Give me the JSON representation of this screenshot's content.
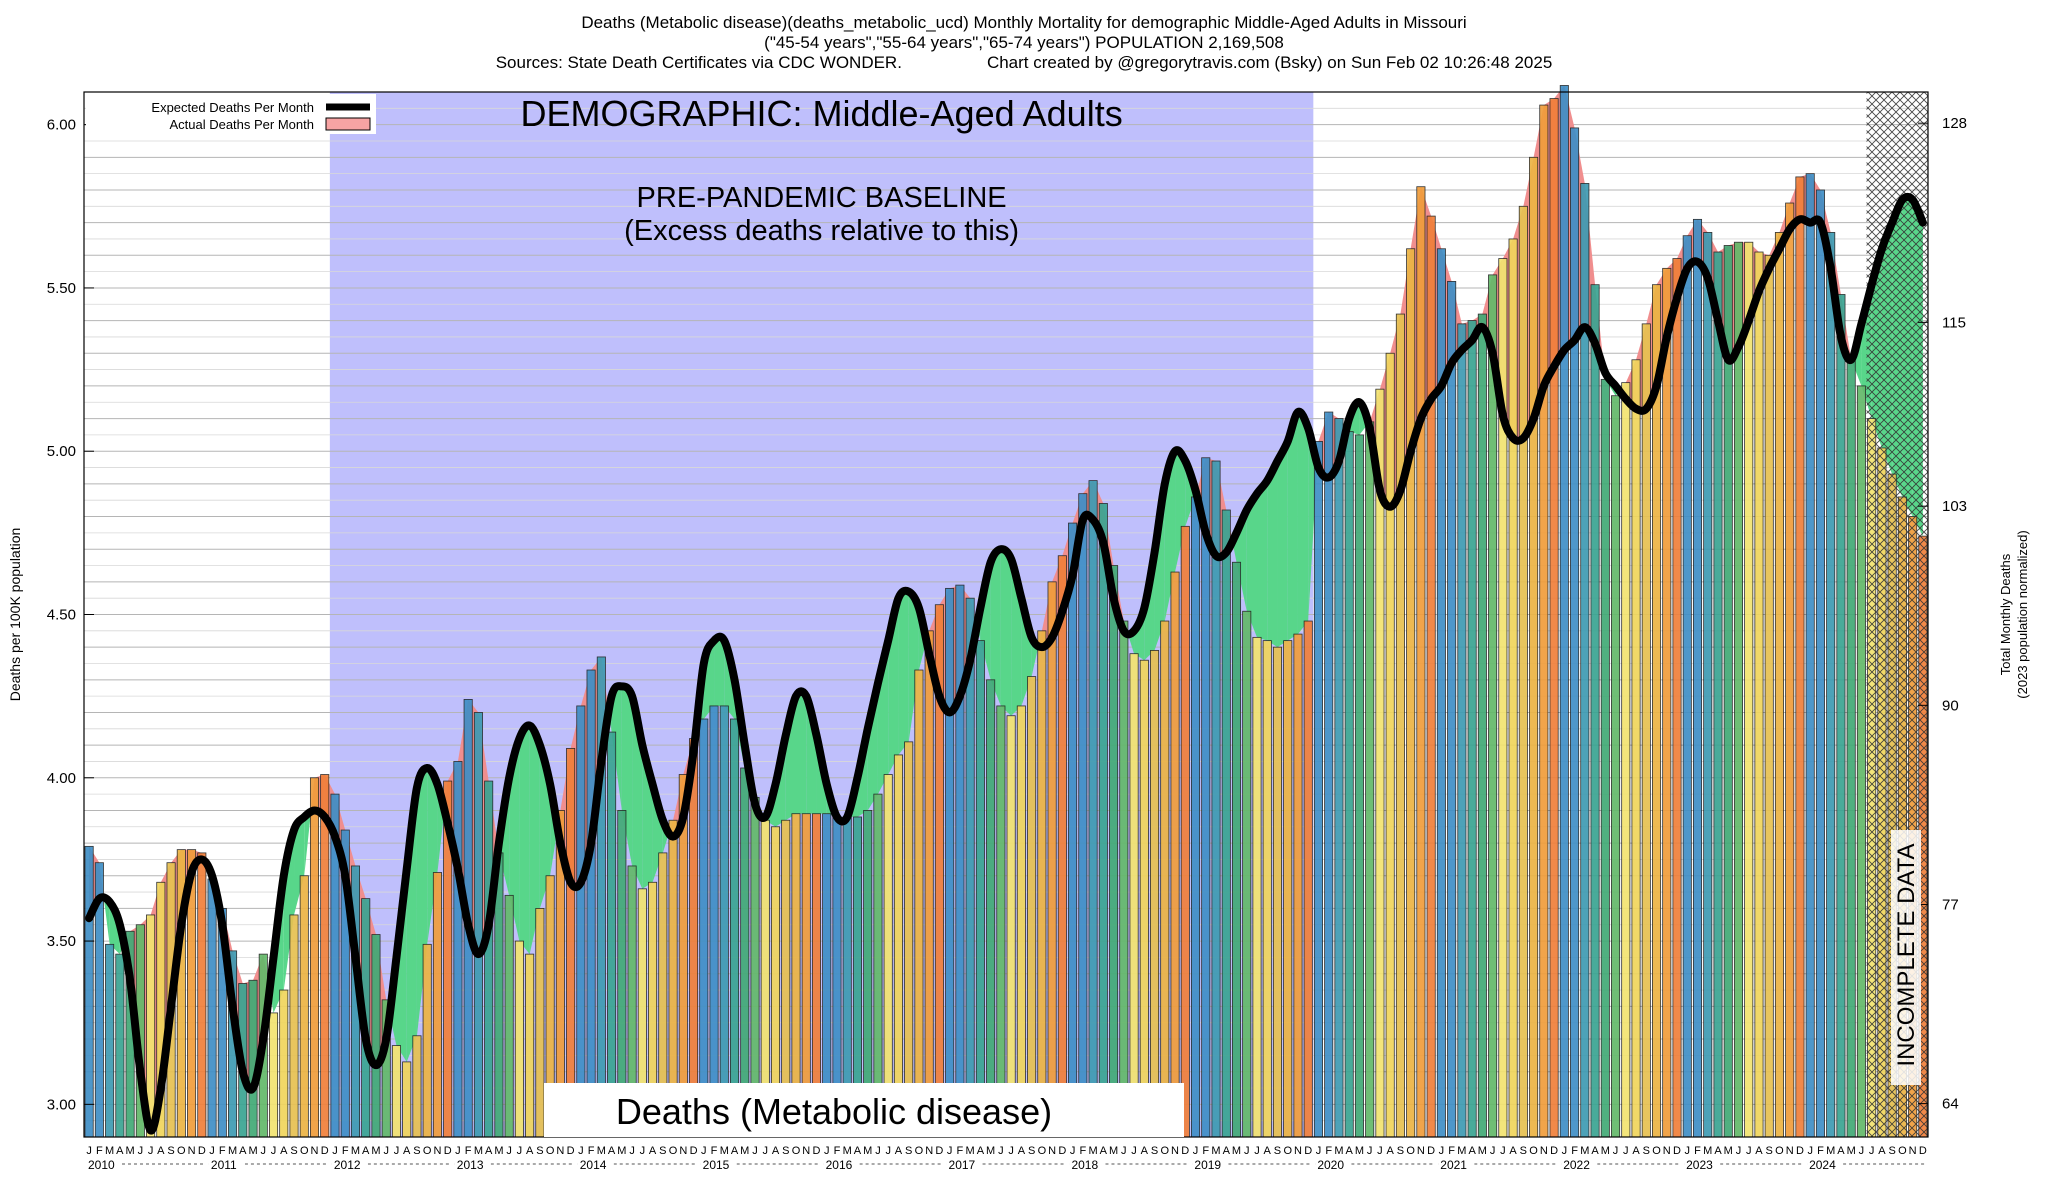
{
  "header": {
    "line1": "Deaths (Metabolic disease)(deaths_metabolic_ucd) Monthly Mortality for demographic Middle-Aged Adults in Missouri",
    "line2": "(\"45-54 years\",\"55-64 years\",\"65-74 years\") POPULATION 2,169,508",
    "line3": "Sources: State Death Certificates via CDC WONDER.                  Chart created by @gregorytravis.com (Bsky) on Sun Feb 02 10:26:48 2025"
  },
  "chart_data": {
    "type": "bar",
    "ylabel": "Deaths per 100K population",
    "y2label_line1": "Total Monthly Deaths",
    "y2label_line2": "(2023 population normalized)",
    "ylim": [
      2.9,
      6.1
    ],
    "y_ticks": [
      3.0,
      3.5,
      4.0,
      4.5,
      5.0,
      5.5,
      6.0
    ],
    "y_tick_labels": [
      "3.00",
      "3.50",
      "4.00",
      "4.50",
      "5.00",
      "5.50",
      "6.00"
    ],
    "y2_ticks": [
      64,
      77,
      90,
      103,
      115,
      128
    ],
    "y2_tick_labels": [
      "64",
      "77",
      "90",
      "103",
      "115",
      "128"
    ],
    "y2_to_y_factor": 0.04691,
    "grid": "horizontal",
    "start_year": 2010,
    "years": [
      "2010",
      "2011",
      "2012",
      "2013",
      "2014",
      "2015",
      "2016",
      "2017",
      "2018",
      "2019",
      "2020",
      "2021",
      "2022",
      "2023",
      "2024"
    ],
    "month_letters": [
      "J",
      "F",
      "M",
      "A",
      "M",
      "J",
      "J",
      "A",
      "S",
      "O",
      "N",
      "D"
    ],
    "month_colors": [
      "#3f8fc6",
      "#3f8fc6",
      "#3e9bb2",
      "#3aa492",
      "#42aa76",
      "#63b96a",
      "#f2e370",
      "#f0d55c",
      "#e7c151",
      "#ecb444",
      "#f09d3b",
      "#f07f3a"
    ],
    "actual": [
      3.79,
      3.74,
      3.49,
      3.46,
      3.53,
      3.55,
      3.58,
      3.68,
      3.74,
      3.78,
      3.78,
      3.77,
      3.69,
      3.6,
      3.47,
      3.37,
      3.38,
      3.46,
      3.28,
      3.35,
      3.58,
      3.7,
      4.0,
      4.01,
      3.95,
      3.84,
      3.73,
      3.63,
      3.52,
      3.32,
      3.18,
      3.13,
      3.21,
      3.49,
      3.71,
      3.99,
      4.05,
      4.24,
      4.2,
      3.99,
      3.77,
      3.64,
      3.5,
      3.46,
      3.6,
      3.7,
      3.9,
      4.09,
      4.22,
      4.33,
      4.37,
      4.14,
      3.9,
      3.73,
      3.66,
      3.68,
      3.77,
      3.87,
      4.01,
      4.12,
      4.18,
      4.22,
      4.22,
      4.18,
      4.03,
      3.94,
      3.87,
      3.85,
      3.87,
      3.89,
      3.89,
      3.89,
      3.89,
      3.88,
      3.88,
      3.88,
      3.9,
      3.95,
      4.01,
      4.07,
      4.11,
      4.33,
      4.45,
      4.53,
      4.58,
      4.59,
      4.55,
      4.42,
      4.3,
      4.22,
      4.19,
      4.22,
      4.31,
      4.45,
      4.6,
      4.68,
      4.78,
      4.87,
      4.91,
      4.84,
      4.65,
      4.48,
      4.38,
      4.36,
      4.39,
      4.48,
      4.63,
      4.77,
      4.86,
      4.98,
      4.97,
      4.82,
      4.66,
      4.51,
      4.43,
      4.42,
      4.4,
      4.42,
      4.44,
      4.48,
      5.03,
      5.12,
      5.1,
      5.06,
      5.05,
      5.09,
      5.19,
      5.3,
      5.42,
      5.62,
      5.81,
      5.72,
      5.62,
      5.52,
      5.39,
      5.4,
      5.42,
      5.54,
      5.59,
      5.65,
      5.75,
      5.9,
      6.06,
      6.08,
      6.12,
      5.99,
      5.82,
      5.51,
      5.22,
      5.17,
      5.21,
      5.28,
      5.39,
      5.51,
      5.56,
      5.59,
      5.66,
      5.71,
      5.67,
      5.61,
      5.63,
      5.64,
      5.64,
      5.61,
      5.6,
      5.67,
      5.76,
      5.84,
      5.85,
      5.8,
      5.67,
      5.48,
      5.28,
      5.2,
      5.1,
      5.01,
      4.93,
      4.86,
      4.8,
      4.74
    ],
    "expected": [
      3.57,
      3.63,
      3.62,
      3.55,
      3.38,
      3.1,
      2.92,
      3.05,
      3.3,
      3.55,
      3.71,
      3.75,
      3.7,
      3.55,
      3.3,
      3.1,
      3.05,
      3.2,
      3.45,
      3.7,
      3.84,
      3.88,
      3.9,
      3.88,
      3.82,
      3.7,
      3.45,
      3.2,
      3.12,
      3.2,
      3.45,
      3.72,
      3.97,
      4.03,
      3.98,
      3.86,
      3.72,
      3.55,
      3.46,
      3.55,
      3.8,
      4.0,
      4.12,
      4.16,
      4.1,
      3.98,
      3.8,
      3.68,
      3.68,
      3.8,
      4.05,
      4.25,
      4.28,
      4.25,
      4.1,
      3.98,
      3.87,
      3.82,
      3.88,
      4.08,
      4.35,
      4.42,
      4.42,
      4.3,
      4.1,
      3.92,
      3.88,
      3.98,
      4.13,
      4.25,
      4.25,
      4.13,
      3.98,
      3.88,
      3.88,
      4.0,
      4.15,
      4.29,
      4.42,
      4.55,
      4.57,
      4.52,
      4.38,
      4.25,
      4.2,
      4.25,
      4.36,
      4.52,
      4.66,
      4.7,
      4.67,
      4.55,
      4.43,
      4.4,
      4.43,
      4.51,
      4.62,
      4.79,
      4.79,
      4.72,
      4.55,
      4.45,
      4.45,
      4.52,
      4.69,
      4.9,
      5.0,
      4.97,
      4.88,
      4.75,
      4.68,
      4.69,
      4.75,
      4.82,
      4.87,
      4.91,
      4.97,
      5.03,
      5.12,
      5.07,
      4.95,
      4.92,
      4.97,
      5.1,
      5.15,
      5.07,
      4.88,
      4.83,
      4.88,
      5.0,
      5.1,
      5.16,
      5.2,
      5.27,
      5.31,
      5.34,
      5.38,
      5.3,
      5.11,
      5.04,
      5.04,
      5.1,
      5.2,
      5.26,
      5.31,
      5.34,
      5.38,
      5.33,
      5.24,
      5.2,
      5.16,
      5.13,
      5.13,
      5.2,
      5.35,
      5.47,
      5.56,
      5.58,
      5.53,
      5.4,
      5.28,
      5.32,
      5.4,
      5.49,
      5.56,
      5.62,
      5.68,
      5.71,
      5.7,
      5.7,
      5.56,
      5.35,
      5.28,
      5.39,
      5.51,
      5.62,
      5.7,
      5.77,
      5.77,
      5.7
    ],
    "baseline_years": [
      "2012",
      "2019"
    ],
    "incomplete_from_month_index": 174,
    "legend": [
      {
        "label": "Expected Deaths Per Month",
        "color": "#000000"
      },
      {
        "label": "Actual Deaths Per Month",
        "color": "#f7a3a3"
      }
    ],
    "legend_position": "top-left",
    "annotations": {
      "demographic": "DEMOGRAPHIC: Middle-Aged Adults",
      "baseline_line1": "PRE-PANDEMIC BASELINE",
      "baseline_line2": "(Excess deaths relative to this)",
      "bottom_label": "Deaths (Metabolic disease)",
      "incomplete": "INCOMPLETE DATA"
    },
    "colors": {
      "baseline_region": "#bfbffc",
      "excess": "#f08e8e",
      "deficit": "#58d68a",
      "expected_line": "#000000"
    }
  }
}
